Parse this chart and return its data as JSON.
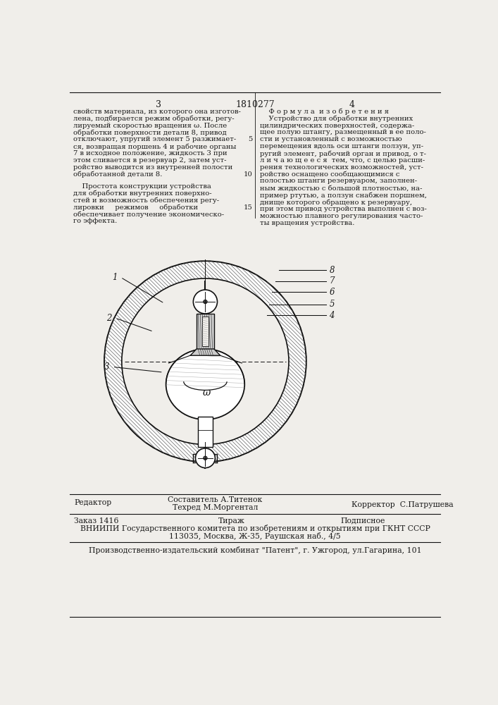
{
  "page_num_left": "3",
  "page_num_center": "1810277",
  "page_num_right": "4",
  "text_left_col": [
    "свойств материала, из которого она изготов-",
    "лена, подбирается режим обработки, регу-",
    "лируемый скоростью вращения ω. После",
    "обработки поверхности детали 8, привод",
    "отключают, упругий элемент 5 разжимает-",
    "ся, возвращая поршень 4 и рабочие органы",
    "7 в исходное положение, жидкость 3 при",
    "этом сливается в резервуар 2, затем уст-",
    "ройство выводится из внутренней полости",
    "обработанной детали 8."
  ],
  "text_left_col2": [
    "    Простота конструкции устройства",
    "для обработки внутренних поверхно-",
    "стей и возможность обеспечения регу-",
    "лировки     режимов     обработки",
    "обеспечивает получение экономическо-",
    "го эффекта."
  ],
  "text_right_col": [
    "    Ф о р м у л а  и з о б р е т е н и я",
    "    Устройство для обработки внутренних",
    "цилиндрических поверхностей, содержа-",
    "щее полую штангу, размещенный в ее поло-",
    "сти и установленный с возможностью",
    "перемещения вдоль оси штанги ползун, уп-",
    "ругий элемент, рабочий орган и привод, о т-",
    "л и ч а ю щ е е с я  тем, что, с целью расши-",
    "рения технологических возможностей, уст-",
    "ройство оснащено сообщающимися с",
    "полостью штанги резервуаром, заполнен-",
    "ным жидкостью с большой плотностью, на-",
    "пример ртутью, а ползун снабжен поршнем,",
    "днище которого обращено к резервуару,",
    "при этом привод устройства выполнен с воз-",
    "можностью плавного регулирования часто-",
    "ты вращения устройства."
  ],
  "editor_line": "Редактор",
  "composer_line1": "Составитель А.Титенок",
  "composer_line2": "Техред М.Моргентал",
  "corrector_line": "Корректор  С.Патрушева",
  "order_line": "Заказ 1416",
  "tirazh_line": "Тираж",
  "podpisnoe_line": "Подписное",
  "vniiipi_line1": "ВНИИПИ Государственного комитета по изобретениям и открытиям при ГКНТ СССР",
  "vniiipi_line2": "113035, Москва, Ж-35, Раушская наб., 4/5",
  "publisher_line": "Производственно-издательский комбинат \"Патент\", г. Ужгород, ул.Гагарина, 101",
  "bg_color": "#f0eeea",
  "text_color": "#1a1a1a",
  "drawing_color": "#111111"
}
